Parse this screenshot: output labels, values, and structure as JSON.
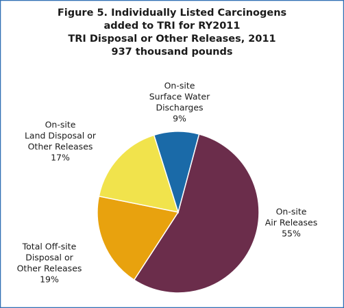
{
  "chart_data": {
    "type": "pie",
    "title": [
      "Figure 5. Individually Listed Carcinogens",
      "added to TRI for RY2011",
      "TRI Disposal or Other Releases, 2011",
      "937 thousand pounds"
    ],
    "categories": [
      [
        "On-site",
        "Air Releases"
      ],
      [
        "Total Off-site",
        "Disposal or",
        "Other Releases"
      ],
      [
        "On-site",
        "Land Disposal or",
        "Other Releases"
      ],
      [
        "On-site",
        "Surface Water",
        "Discharges"
      ]
    ],
    "values": [
      55,
      19,
      17,
      9
    ],
    "value_labels": [
      "55%",
      "19%",
      "17%",
      "9%"
    ],
    "colors": [
      "#6b2d4b",
      "#e8a20e",
      "#f1e34c",
      "#1a6aa8"
    ]
  }
}
